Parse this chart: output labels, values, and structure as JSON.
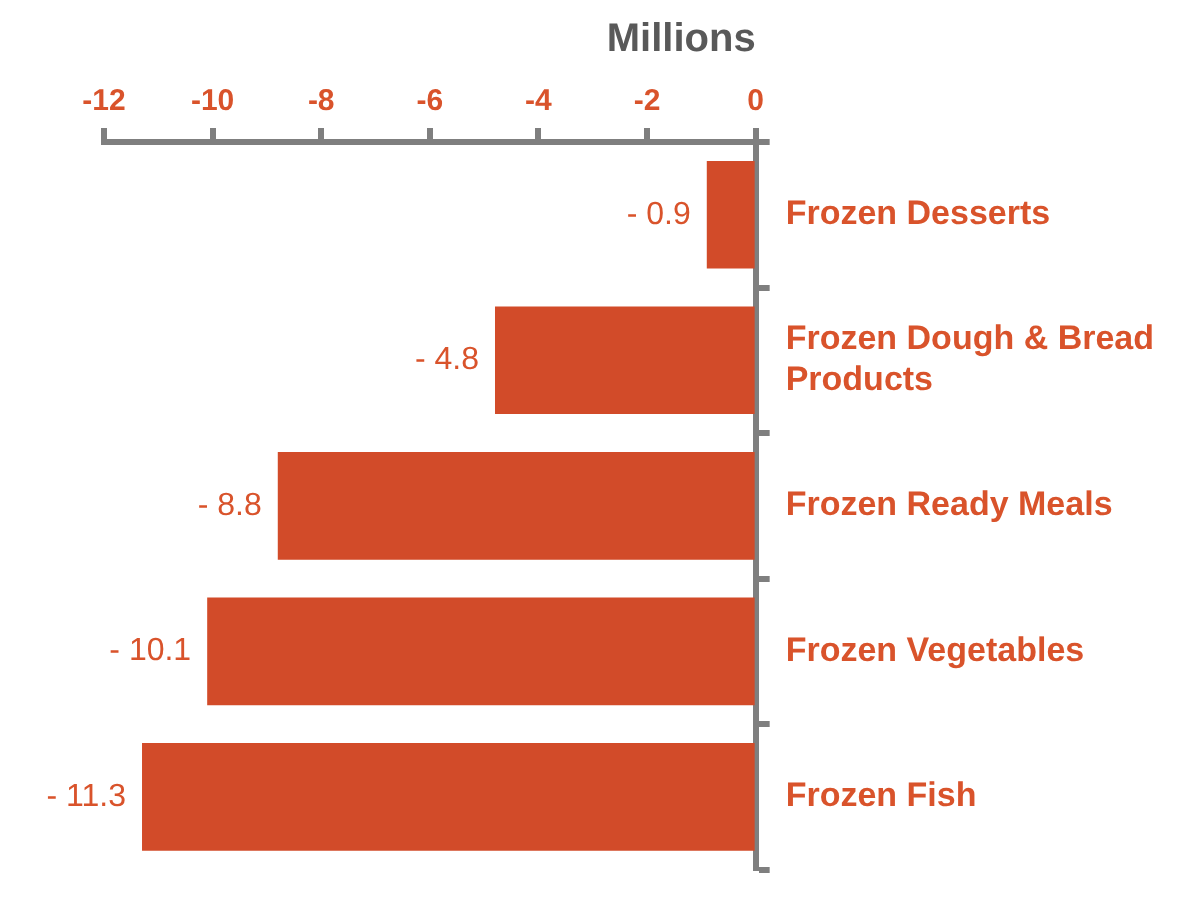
{
  "chart_data": {
    "type": "bar",
    "orientation": "horizontal",
    "xlabel": "Millions",
    "categories": [
      "Frozen Desserts",
      "Frozen Dough & Bread Products",
      "Frozen Ready Meals",
      "Frozen Vegetables",
      "Frozen Fish"
    ],
    "values": [
      -0.9,
      -4.8,
      -8.8,
      -10.1,
      -11.3
    ],
    "value_labels": [
      "- 0.9",
      "- 4.8",
      "- 8.8",
      "- 10.1",
      "- 11.3"
    ],
    "color": "#d24b29",
    "xlim": [
      -12,
      0
    ],
    "xticks": [
      -12,
      -10,
      -8,
      -6,
      -4,
      -2,
      0
    ],
    "grid": false,
    "legend": false
  }
}
